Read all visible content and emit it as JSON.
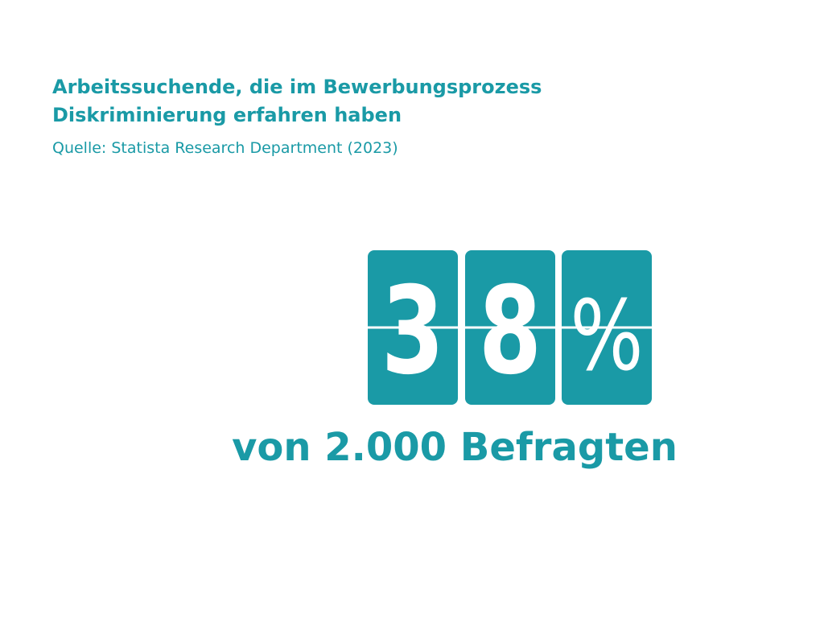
{
  "header": {
    "title": [
      "Arbeitssuchende, die im Bewerbungsprozess",
      "Diskriminierung erfahren haben"
    ],
    "source": "Quelle: Statista Research Department (2023)"
  },
  "figure": {
    "digits": [
      "3",
      "8",
      "%"
    ],
    "caption": "von 2.000 Befragten"
  }
}
